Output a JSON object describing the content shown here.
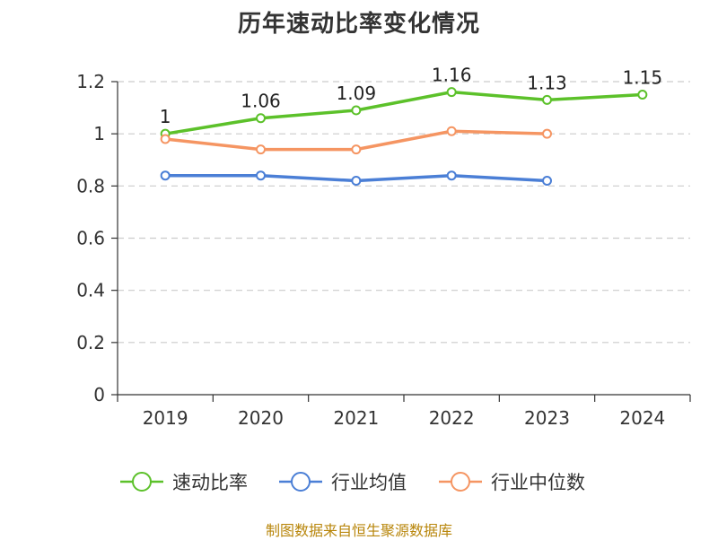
{
  "chart_data": {
    "type": "line",
    "title": "历年速动比率变化情况",
    "categories": [
      "2019",
      "2020",
      "2021",
      "2022",
      "2023",
      "2024"
    ],
    "ylim": [
      0,
      1.2
    ],
    "yticks": [
      "0",
      "0.2",
      "0.4",
      "0.6",
      "0.8",
      "1",
      "1.2"
    ],
    "grid": true,
    "legend_position": "bottom",
    "series": [
      {
        "name": "速动比率",
        "color": "#5cc12a",
        "values": [
          1.0,
          1.06,
          1.09,
          1.16,
          1.13,
          1.15
        ],
        "labels": [
          "1",
          "1.06",
          "1.09",
          "1.16",
          "1.13",
          "1.15"
        ]
      },
      {
        "name": "行业均值",
        "color": "#4b7fd6",
        "values": [
          0.84,
          0.84,
          0.82,
          0.84,
          0.82,
          null
        ]
      },
      {
        "name": "行业中位数",
        "color": "#f59562",
        "values": [
          0.98,
          0.94,
          0.94,
          1.01,
          1.0,
          null
        ]
      }
    ]
  },
  "footer": {
    "source": "制图数据来自恒生聚源数据库"
  }
}
